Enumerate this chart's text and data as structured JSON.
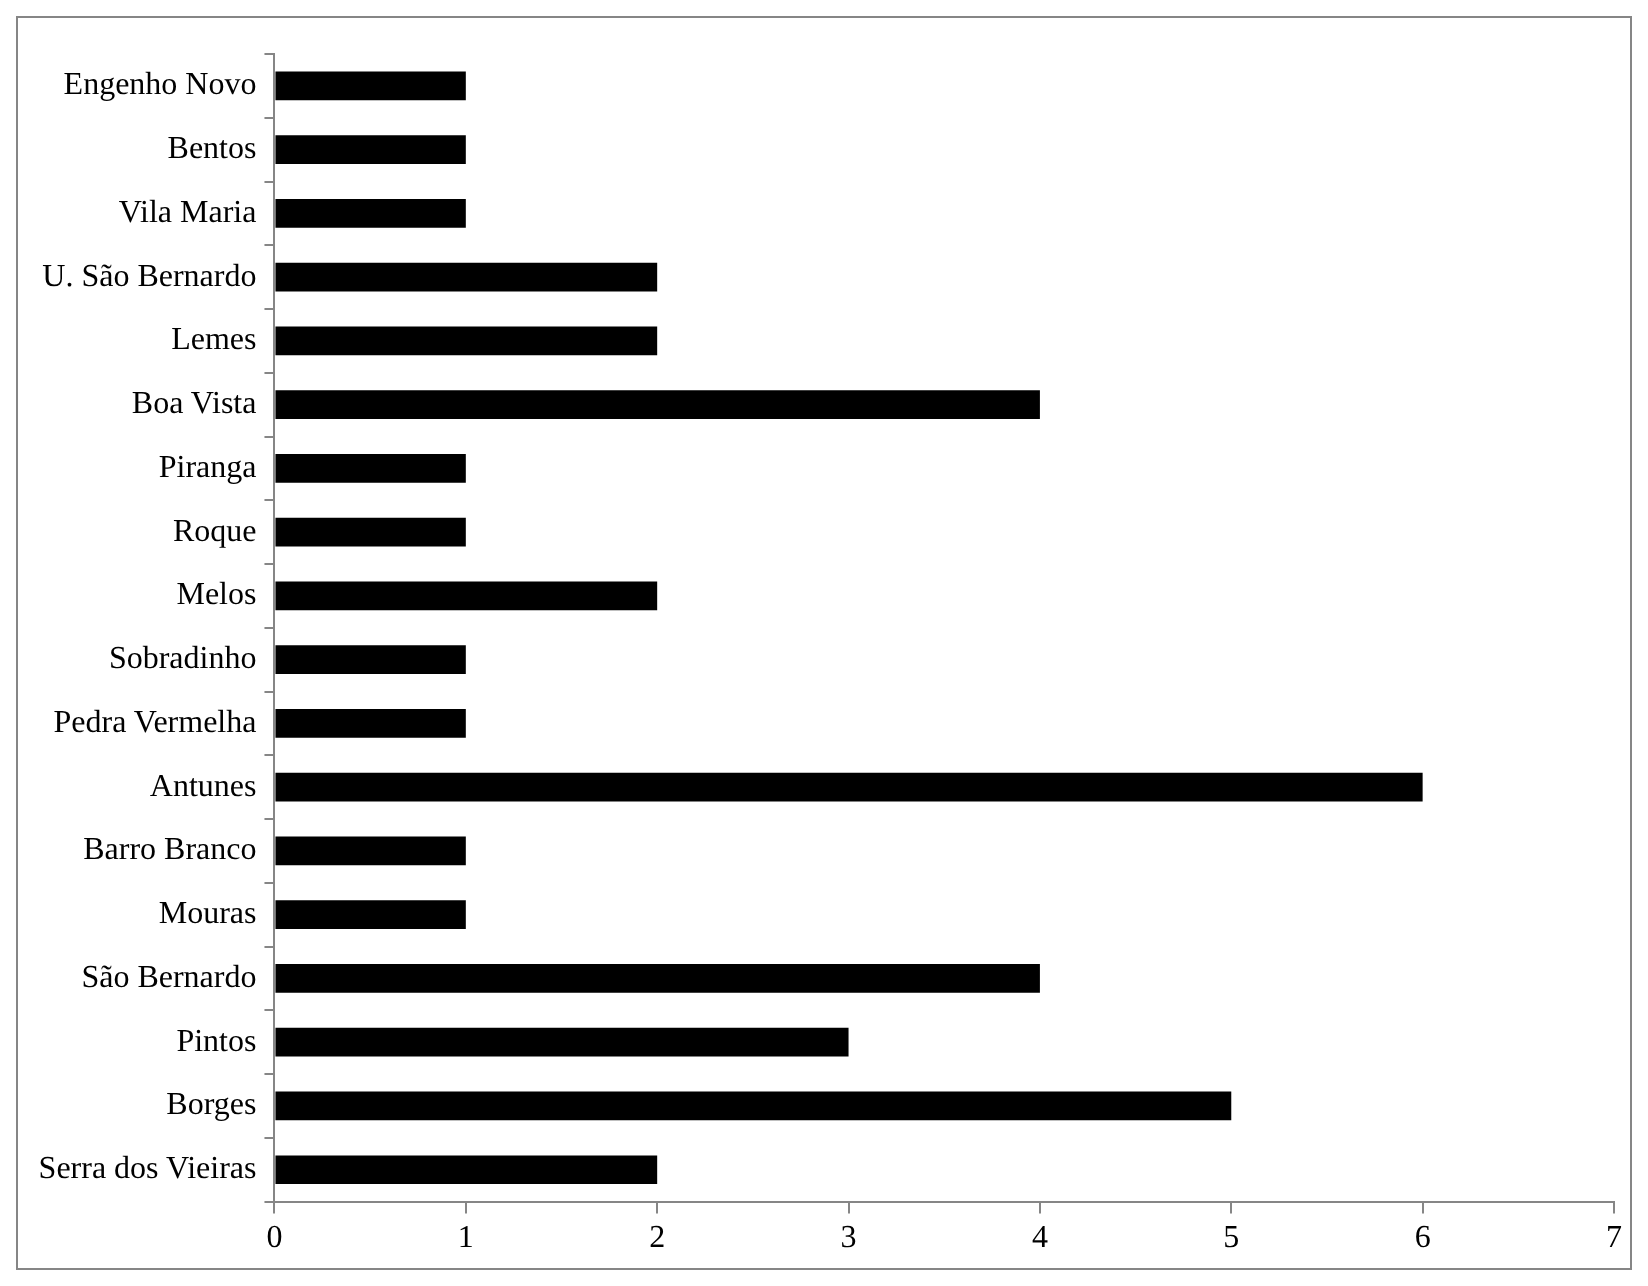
{
  "chart_data": {
    "type": "bar",
    "orientation": "horizontal",
    "categories": [
      "Engenho Novo",
      "Bentos",
      "Vila Maria",
      "U. São Bernardo",
      "Lemes",
      "Boa Vista",
      "Piranga",
      "Roque",
      "Melos",
      "Sobradinho",
      "Pedra Vermelha",
      "Antunes",
      "Barro Branco",
      "Mouras",
      "São Bernardo",
      "Pintos",
      "Borges",
      "Serra dos Vieiras"
    ],
    "values": [
      1,
      1,
      1,
      2,
      2,
      4,
      1,
      1,
      2,
      1,
      1,
      6,
      1,
      1,
      4,
      3,
      5,
      2
    ],
    "color": "#000000",
    "xlim": [
      0,
      7
    ],
    "xticks": [
      0,
      1,
      2,
      3,
      4,
      5,
      6,
      7
    ]
  }
}
